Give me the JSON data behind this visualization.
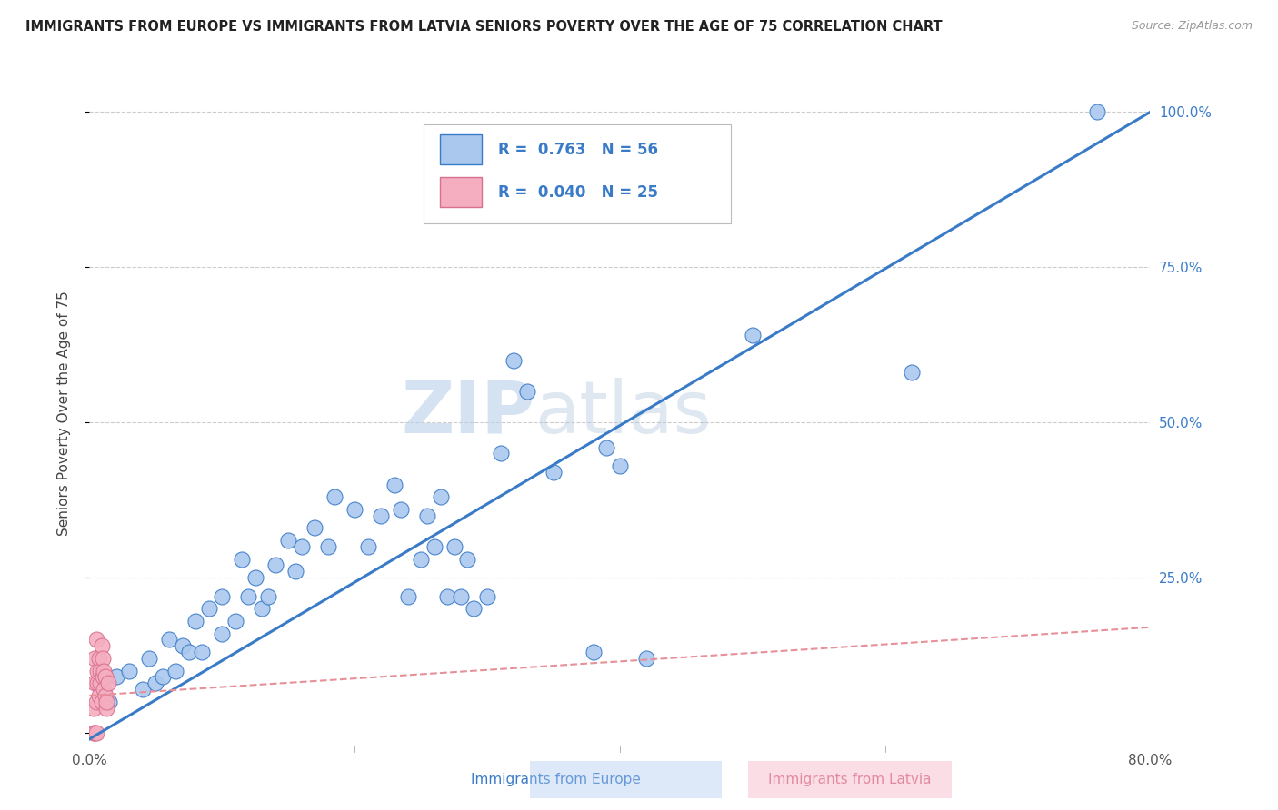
{
  "title": "IMMIGRANTS FROM EUROPE VS IMMIGRANTS FROM LATVIA SENIORS POVERTY OVER THE AGE OF 75 CORRELATION CHART",
  "source": "Source: ZipAtlas.com",
  "ylabel": "Seniors Poverty Over the Age of 75",
  "xlabel_europe": "Immigrants from Europe",
  "xlabel_latvia": "Immigrants from Latvia",
  "watermark_zip": "ZIP",
  "watermark_atlas": "atlas",
  "xlim": [
    0.0,
    0.8
  ],
  "ylim": [
    -0.02,
    1.05
  ],
  "R_europe": 0.763,
  "N_europe": 56,
  "R_latvia": 0.04,
  "N_latvia": 25,
  "color_europe": "#aac8ee",
  "color_latvia": "#f5aec0",
  "line_color_europe": "#3a7bc8",
  "line_color_latvia": "#e89098",
  "background_color": "#ffffff",
  "grid_color": "#cccccc",
  "title_color": "#222222",
  "source_color": "#999999",
  "europe_scatter": [
    [
      0.015,
      0.05
    ],
    [
      0.02,
      0.09
    ],
    [
      0.03,
      0.1
    ],
    [
      0.04,
      0.07
    ],
    [
      0.045,
      0.12
    ],
    [
      0.05,
      0.08
    ],
    [
      0.055,
      0.09
    ],
    [
      0.06,
      0.15
    ],
    [
      0.065,
      0.1
    ],
    [
      0.07,
      0.14
    ],
    [
      0.075,
      0.13
    ],
    [
      0.08,
      0.18
    ],
    [
      0.085,
      0.13
    ],
    [
      0.09,
      0.2
    ],
    [
      0.1,
      0.22
    ],
    [
      0.1,
      0.16
    ],
    [
      0.11,
      0.18
    ],
    [
      0.115,
      0.28
    ],
    [
      0.12,
      0.22
    ],
    [
      0.125,
      0.25
    ],
    [
      0.13,
      0.2
    ],
    [
      0.135,
      0.22
    ],
    [
      0.14,
      0.27
    ],
    [
      0.15,
      0.31
    ],
    [
      0.155,
      0.26
    ],
    [
      0.16,
      0.3
    ],
    [
      0.17,
      0.33
    ],
    [
      0.18,
      0.3
    ],
    [
      0.185,
      0.38
    ],
    [
      0.2,
      0.36
    ],
    [
      0.21,
      0.3
    ],
    [
      0.22,
      0.35
    ],
    [
      0.23,
      0.4
    ],
    [
      0.235,
      0.36
    ],
    [
      0.24,
      0.22
    ],
    [
      0.25,
      0.28
    ],
    [
      0.255,
      0.35
    ],
    [
      0.26,
      0.3
    ],
    [
      0.265,
      0.38
    ],
    [
      0.27,
      0.22
    ],
    [
      0.275,
      0.3
    ],
    [
      0.28,
      0.22
    ],
    [
      0.285,
      0.28
    ],
    [
      0.29,
      0.2
    ],
    [
      0.3,
      0.22
    ],
    [
      0.31,
      0.45
    ],
    [
      0.32,
      0.6
    ],
    [
      0.33,
      0.55
    ],
    [
      0.35,
      0.42
    ],
    [
      0.38,
      0.13
    ],
    [
      0.39,
      0.46
    ],
    [
      0.4,
      0.43
    ],
    [
      0.42,
      0.12
    ],
    [
      0.5,
      0.64
    ],
    [
      0.62,
      0.58
    ],
    [
      0.76,
      1.0
    ]
  ],
  "latvia_scatter": [
    [
      0.003,
      0.04
    ],
    [
      0.004,
      0.12
    ],
    [
      0.004,
      0.08
    ],
    [
      0.005,
      0.15
    ],
    [
      0.005,
      0.05
    ],
    [
      0.006,
      0.1
    ],
    [
      0.006,
      0.08
    ],
    [
      0.007,
      0.06
    ],
    [
      0.007,
      0.12
    ],
    [
      0.008,
      0.1
    ],
    [
      0.008,
      0.08
    ],
    [
      0.009,
      0.14
    ],
    [
      0.009,
      0.05
    ],
    [
      0.01,
      0.09
    ],
    [
      0.01,
      0.12
    ],
    [
      0.011,
      0.07
    ],
    [
      0.011,
      0.1
    ],
    [
      0.012,
      0.06
    ],
    [
      0.012,
      0.09
    ],
    [
      0.013,
      0.04
    ],
    [
      0.013,
      0.05
    ],
    [
      0.014,
      0.08
    ],
    [
      0.003,
      0.0
    ],
    [
      0.004,
      0.0
    ],
    [
      0.005,
      0.0
    ]
  ]
}
